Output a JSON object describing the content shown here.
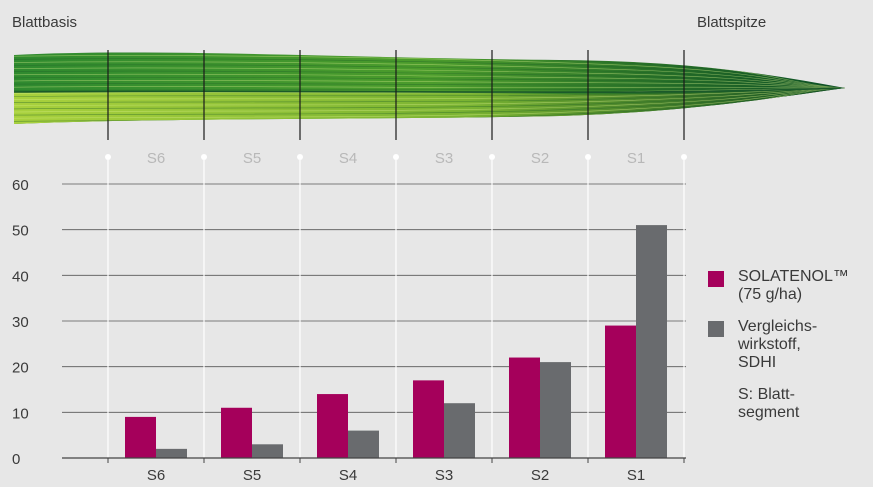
{
  "labels": {
    "base": "Blattbasis",
    "tip": "Blattspitze"
  },
  "legend": {
    "series1": "SOLATENOL™\n(75 g/ha)",
    "series2": "Vergleichs-\nwirkstoff,\nSDHI",
    "note": "S: Blatt-\nsegment"
  },
  "colors": {
    "series1": "#a5005b",
    "series2": "#696b6e",
    "background": "#e7e7e7",
    "leaf_dark": "#0a5a2a",
    "leaf_light": "#9ccc3a"
  },
  "chart_data": {
    "type": "bar",
    "categories": [
      "S6",
      "S5",
      "S4",
      "S3",
      "S2",
      "S1"
    ],
    "series": [
      {
        "name": "SOLATENOL™ (75 g/ha)",
        "values": [
          9,
          11,
          14,
          17,
          22,
          29
        ]
      },
      {
        "name": "Vergleichswirkstoff, SDHI",
        "values": [
          2,
          3,
          6,
          12,
          21,
          51
        ]
      }
    ],
    "yticks": [
      0,
      10,
      20,
      30,
      40,
      50,
      60
    ],
    "ylim": [
      0,
      60
    ],
    "grid": true,
    "legend_position": "right",
    "segment_labels_top": [
      "S6",
      "S5",
      "S4",
      "S3",
      "S2",
      "S1"
    ]
  }
}
